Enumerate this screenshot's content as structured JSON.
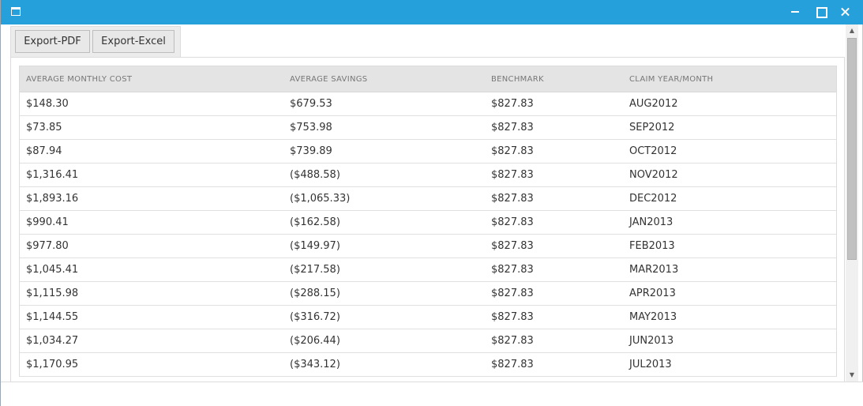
{
  "window": {
    "colors": {
      "titlebar": "#26a0da",
      "header_bg": "#e4e4e4"
    },
    "icons": [
      "window-icon",
      "minimize-icon",
      "maximize-icon",
      "close-icon"
    ]
  },
  "toolbar": {
    "export_pdf": "Export-PDF",
    "export_excel": "Export-Excel"
  },
  "table": {
    "columns": [
      "AVERAGE MONTHLY COST",
      "AVERAGE SAVINGS",
      "BENCHMARK",
      "CLAIM YEAR/MONTH"
    ],
    "rows": [
      [
        "$148.30",
        "$679.53",
        "$827.83",
        "AUG2012"
      ],
      [
        "$73.85",
        "$753.98",
        "$827.83",
        "SEP2012"
      ],
      [
        "$87.94",
        "$739.89",
        "$827.83",
        "OCT2012"
      ],
      [
        "$1,316.41",
        "($488.58)",
        "$827.83",
        "NOV2012"
      ],
      [
        "$1,893.16",
        "($1,065.33)",
        "$827.83",
        "DEC2012"
      ],
      [
        "$990.41",
        "($162.58)",
        "$827.83",
        "JAN2013"
      ],
      [
        "$977.80",
        "($149.97)",
        "$827.83",
        "FEB2013"
      ],
      [
        "$1,045.41",
        "($217.58)",
        "$827.83",
        "MAR2013"
      ],
      [
        "$1,115.98",
        "($288.15)",
        "$827.83",
        "APR2013"
      ],
      [
        "$1,144.55",
        "($316.72)",
        "$827.83",
        "MAY2013"
      ],
      [
        "$1,034.27",
        "($206.44)",
        "$827.83",
        "JUN2013"
      ],
      [
        "$1,170.95",
        "($343.12)",
        "$827.83",
        "JUL2013"
      ]
    ]
  },
  "scrollbar": {
    "up_glyph": "▲",
    "down_glyph": "▼"
  }
}
